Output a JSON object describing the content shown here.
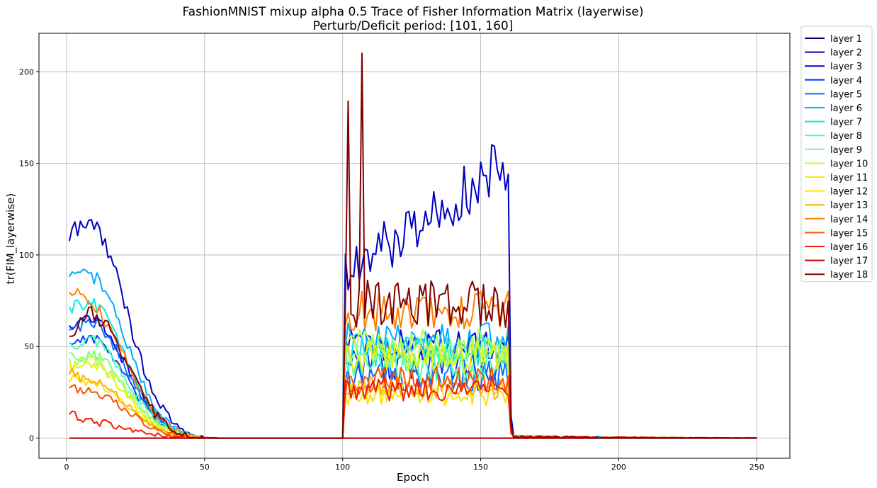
{
  "chart_data": {
    "type": "line",
    "title": "FashionMNIST mixup alpha 0.5 Trace of Fisher Information Matrix (layerwise)",
    "subtitle": "Perturb/Deficit period: [101, 160]",
    "xlabel": "Epoch",
    "ylabel": "tr(FIM_layerwise)",
    "xlim": [
      -10,
      262
    ],
    "ylim": [
      -11,
      221
    ],
    "xticks": [
      0,
      50,
      100,
      150,
      200,
      250
    ],
    "yticks": [
      0,
      50,
      100,
      150,
      200
    ],
    "grid": true,
    "legend_position": "outside-right-top",
    "series": [
      {
        "name": "layer 1",
        "color": "#00007f",
        "start": 0,
        "end": 0,
        "peak": 0,
        "noise": 0
      },
      {
        "name": "layer 2",
        "color": "#0000c4",
        "start": 109,
        "end": 118,
        "peak": 151,
        "noise": 14
      },
      {
        "name": "layer 3",
        "color": "#0000f1",
        "start": 62,
        "end": 66,
        "peak": 64,
        "noise": 8
      },
      {
        "name": "layer 4",
        "color": "#0c34f8",
        "start": 52,
        "end": 55,
        "peak": 50,
        "noise": 8
      },
      {
        "name": "layer 5",
        "color": "#0070ff",
        "start": 58,
        "end": 64,
        "peak": 42,
        "noise": 8
      },
      {
        "name": "layer 6",
        "color": "#00acff",
        "start": 87,
        "end": 89,
        "peak": 68,
        "noise": 9
      },
      {
        "name": "layer 7",
        "color": "#0de5e5",
        "start": 70,
        "end": 74,
        "peak": 60,
        "noise": 8
      },
      {
        "name": "layer 8",
        "color": "#47ffb2",
        "start": 50,
        "end": 54,
        "peak": 50,
        "noise": 8
      },
      {
        "name": "layer 9",
        "color": "#7bff7b",
        "start": 44,
        "end": 46,
        "peak": 58,
        "noise": 8
      },
      {
        "name": "layer 10",
        "color": "#b2ff47",
        "start": 40,
        "end": 43,
        "peak": 62,
        "noise": 9
      },
      {
        "name": "layer 11",
        "color": "#e5f20d",
        "start": 37,
        "end": 40,
        "peak": 55,
        "noise": 8
      },
      {
        "name": "layer 12",
        "color": "#ffe000",
        "start": 34,
        "end": 30,
        "peak": 30,
        "noise": 6
      },
      {
        "name": "layer 13",
        "color": "#ffb000",
        "start": 38,
        "end": 31,
        "peak": 34,
        "noise": 6
      },
      {
        "name": "layer 14",
        "color": "#ff8000",
        "start": 85,
        "end": 71,
        "peak": 87,
        "noise": 10
      },
      {
        "name": "layer 15",
        "color": "#ff4f00",
        "start": 30,
        "end": 26,
        "peak": 40,
        "noise": 7
      },
      {
        "name": "layer 16",
        "color": "#f11e00",
        "start": 15,
        "end": 9,
        "peak": 33,
        "noise": 6
      },
      {
        "name": "layer 17",
        "color": "#c40000",
        "start": 0,
        "end": 0,
        "peak": 0,
        "noise": 0
      },
      {
        "name": "layer 18",
        "color": "#7f0000",
        "start": 55,
        "end": 68,
        "peak": 92,
        "noise": 12
      }
    ]
  }
}
